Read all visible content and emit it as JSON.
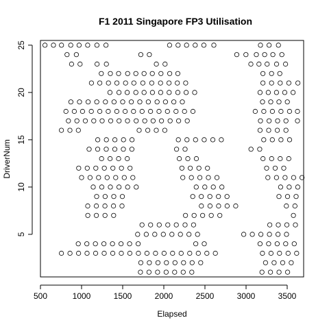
{
  "chart_data": {
    "type": "scatter",
    "title": "F1 2011 Singapore FP3 Utilisation",
    "xlabel": "Elapsed",
    "ylabel": "DriverNum",
    "xlim": [
      500,
      3700
    ],
    "ylim": [
      0.5,
      25.5
    ],
    "xticks": [
      500,
      1000,
      1500,
      2000,
      2500,
      3000,
      3500
    ],
    "yticks": [
      5,
      10,
      15,
      20,
      25
    ],
    "grid": false,
    "legend": "none",
    "marker": "open-circle",
    "series": [
      {
        "driver": 25,
        "x": [
          555,
          658,
          756,
          868,
          970,
          1074,
          1187,
          1297,
          2070,
          2173,
          2277,
          2382,
          2487,
          2608,
          3175,
          3280,
          3393
        ]
      },
      {
        "driver": 24,
        "x": [
          823,
          937,
          1720,
          1824,
          2887,
          2998,
          3125,
          3226,
          3326,
          3435
        ]
      },
      {
        "driver": 23,
        "x": [
          878,
          982,
          1188,
          1302,
          1909,
          2015,
          3058,
          3157,
          3256,
          3371,
          3480
        ]
      },
      {
        "driver": 22,
        "x": [
          1240,
          1350,
          1450,
          1560,
          1660,
          1760,
          1860,
          1965,
          2072,
          2170,
          3205,
          3310,
          3410
        ]
      },
      {
        "driver": 21,
        "x": [
          1120,
          1222,
          1327,
          1429,
          1535,
          1636,
          1745,
          1853,
          1960,
          2063,
          2164,
          2266,
          3205,
          3310,
          3415,
          3520,
          3630
        ]
      },
      {
        "driver": 20,
        "x": [
          1345,
          1455,
          1555,
          1660,
          1760,
          1862,
          1962,
          2065,
          2170,
          2272,
          2375,
          3170,
          3270,
          3370,
          3470,
          3572
        ]
      },
      {
        "driver": 19,
        "x": [
          870,
          975,
          1080,
          1185,
          1290,
          1395,
          1500,
          1605,
          1708,
          1812,
          1918,
          2020,
          2122,
          2225,
          3200,
          3300,
          3400,
          3502
        ]
      },
      {
        "driver": 18,
        "x": [
          810,
          912,
          1012,
          1118,
          1222,
          1324,
          1428,
          1530,
          1632,
          1736,
          1838,
          1942,
          2044,
          2148,
          2252,
          2354,
          3112,
          3216,
          3320,
          3424,
          3528,
          3625
        ]
      },
      {
        "driver": 17,
        "x": [
          840,
          943,
          1046,
          1148,
          1250,
          1354,
          1456,
          1558,
          1664,
          1768,
          1870,
          1972,
          2077,
          2180,
          2285,
          3175,
          3280,
          3383,
          3485,
          3625
        ]
      },
      {
        "driver": 16,
        "x": [
          755,
          858,
          961,
          1700,
          1805,
          1908,
          2012,
          3170,
          3275,
          3380,
          3485
        ]
      },
      {
        "driver": 15,
        "x": [
          1197,
          1302,
          1405,
          1510,
          1613,
          2177,
          2282,
          2386,
          2491,
          2596,
          2699,
          3215,
          3319,
          3424,
          3529
        ]
      },
      {
        "driver": 14,
        "x": [
          1092,
          1196,
          1300,
          1404,
          1508,
          1612,
          2155,
          2258,
          3060,
          3166
        ]
      },
      {
        "driver": 13,
        "x": [
          1243,
          1347,
          1450,
          1556,
          2188,
          2292,
          2396,
          3206,
          3311,
          3415,
          3519
        ]
      },
      {
        "driver": 12,
        "x": [
          965,
          1069,
          1173,
          1277,
          1381,
          1485,
          1589,
          2220,
          2322,
          2427,
          2531,
          3250,
          3354,
          3458
        ]
      },
      {
        "driver": 11,
        "x": [
          1000,
          1103,
          1207,
          1311,
          1415,
          1519,
          1623,
          2231,
          2335,
          2438,
          2542,
          2646,
          3265,
          3370,
          3474,
          3578,
          3680
        ]
      },
      {
        "driver": 10,
        "x": [
          1142,
          1246,
          1350,
          1455,
          1560,
          1665,
          2394,
          2498,
          2602,
          2706,
          3420,
          3524,
          3628
        ]
      },
      {
        "driver": 9,
        "x": [
          1183,
          1287,
          1392,
          1496,
          2352,
          2456,
          2560,
          2664,
          2768,
          3400,
          3504,
          3608
        ]
      },
      {
        "driver": 8,
        "x": [
          1075,
          1180,
          1284,
          1388,
          1492,
          2457,
          2562,
          2666,
          2770,
          2874,
          3490,
          3594
        ]
      },
      {
        "driver": 7,
        "x": [
          1076,
          1180,
          1285,
          1390,
          2263,
          2368,
          2472,
          2577,
          2681,
          3576
        ]
      },
      {
        "driver": 6,
        "x": [
          1735,
          1839,
          1944,
          2048,
          2152,
          2258,
          2362,
          3288,
          3392,
          3496,
          3600
        ]
      },
      {
        "driver": 5,
        "x": [
          1682,
          1787,
          1890,
          1994,
          2098,
          2202,
          2306,
          2410,
          2972,
          3076,
          3180,
          3284,
          3388,
          3492
        ]
      },
      {
        "driver": 4,
        "x": [
          960,
          1064,
          1168,
          1272,
          1376,
          1480,
          1584,
          1688,
          2388,
          2492,
          3170,
          3274,
          3378,
          3482,
          3586
        ]
      },
      {
        "driver": 3,
        "x": [
          755,
          859,
          963,
          1067,
          1171,
          1275,
          1379,
          1483,
          1587,
          1691,
          1795,
          1899,
          2003,
          2107,
          2211,
          2315,
          2419,
          2523,
          2627,
          3199,
          3303,
          3407,
          3511,
          3615
        ]
      },
      {
        "driver": 2,
        "x": [
          1720,
          1824,
          1928,
          2032,
          2136,
          2240,
          2344,
          2448,
          3237,
          3341,
          3445,
          3549
        ]
      },
      {
        "driver": 1,
        "x": [
          1716,
          1820,
          1924,
          2028,
          2132,
          2236,
          2340,
          3193,
          3297,
          3401,
          3505
        ]
      }
    ]
  }
}
